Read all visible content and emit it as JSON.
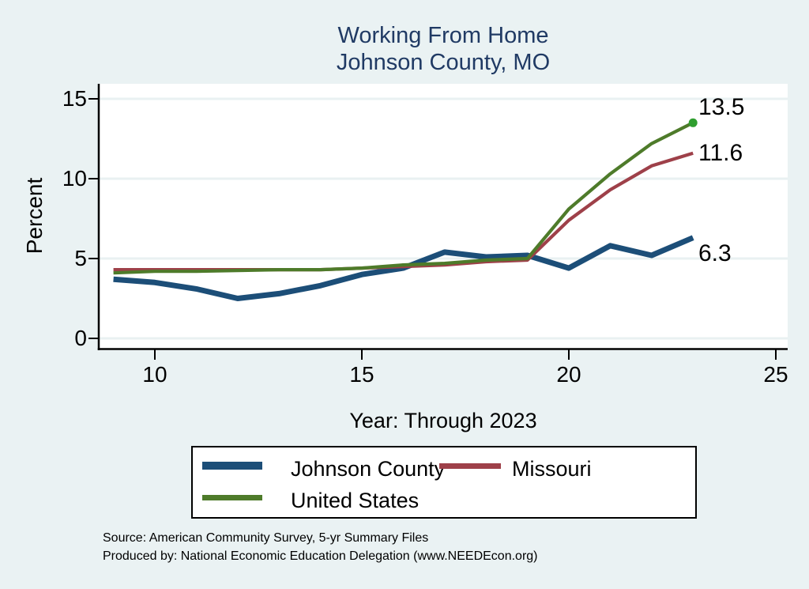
{
  "title": {
    "line1": "Working From Home",
    "line2": "Johnson County, MO"
  },
  "colors": {
    "background": "#eaf2f3",
    "plot_bg": "#ffffff",
    "grid": "#e9f1f2",
    "axis": "#000000",
    "title_text": "#203a64",
    "johnson_county": "#1c4e78",
    "missouri": "#9e4049",
    "united_states": "#4e7b2a",
    "us_end_marker": "#2f9e2f"
  },
  "chart_data": {
    "type": "line",
    "title": "Working From Home Johnson County, MO",
    "xlabel": "Year: Through 2023",
    "ylabel": "Percent",
    "x": [
      9,
      10,
      11,
      12,
      13,
      14,
      15,
      16,
      17,
      18,
      19,
      20,
      21,
      22,
      23
    ],
    "series": [
      {
        "name": "Johnson County",
        "color": "#1c4e78",
        "width": 7,
        "values": [
          3.7,
          3.5,
          3.1,
          2.5,
          2.8,
          3.3,
          4.0,
          4.4,
          5.4,
          5.1,
          5.2,
          4.4,
          5.8,
          5.2,
          6.3
        ],
        "end_label": "6.3",
        "label_dy": 20,
        "end_marker": false
      },
      {
        "name": "Missouri",
        "color": "#9e4049",
        "width": 4.2,
        "values": [
          4.3,
          4.3,
          4.3,
          4.3,
          4.3,
          4.3,
          4.4,
          4.5,
          4.6,
          4.8,
          4.9,
          7.4,
          9.3,
          10.8,
          11.6
        ],
        "end_label": "11.6",
        "label_dy": 0,
        "end_marker": false
      },
      {
        "name": "United States",
        "color": "#4e7b2a",
        "width": 4.2,
        "values": [
          4.1,
          4.2,
          4.2,
          4.25,
          4.3,
          4.3,
          4.4,
          4.6,
          4.7,
          4.9,
          5.0,
          8.1,
          10.3,
          12.2,
          13.5
        ],
        "end_label": "13.5",
        "label_dy": -19,
        "end_marker": true,
        "end_marker_color": "#2f9e2f"
      }
    ],
    "xticks": [
      10,
      15,
      20,
      25
    ],
    "yticks": [
      0,
      5,
      10,
      15
    ],
    "xlim": [
      8.6,
      25.3
    ],
    "ylim": [
      0,
      15
    ],
    "grid": true,
    "legend_position": "bottom"
  },
  "footer": {
    "line1": "Source: American Community Survey, 5-yr Summary Files",
    "line2": "Produced by: National Economic Education Delegation (www.NEEDEcon.org)"
  }
}
